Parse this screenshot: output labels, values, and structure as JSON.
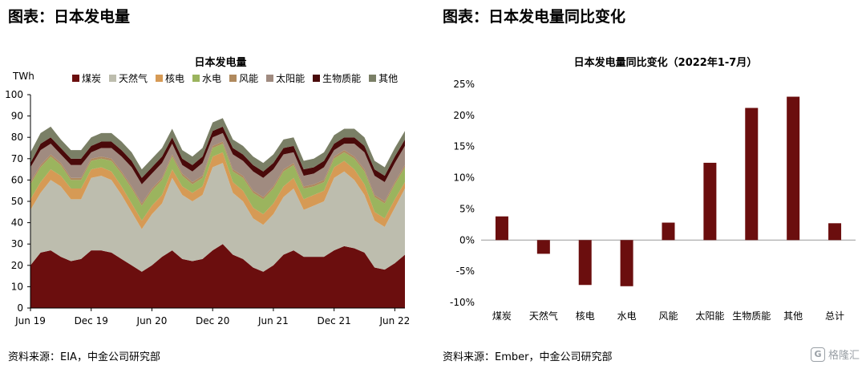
{
  "left": {
    "heading": "图表：日本发电量",
    "title": "日本发电量",
    "unit": "TWh",
    "source": "资料来源：EIA，中金公司研究部"
  },
  "right": {
    "heading": "图表：日本发电量同比变化",
    "title": "日本发电量同比变化（2022年1-7月）",
    "source": "资料来源：Ember，中金公司研究部"
  },
  "watermark": {
    "logo": "G",
    "text": "格隆汇"
  },
  "colors": {
    "coal": "#6B0E0E",
    "gas": "#BDBDAE",
    "nuclear": "#D69A55",
    "hydro": "#9BB45E",
    "wind": "#B08A5E",
    "solar": "#A08B80",
    "biomass": "#4A0A0A",
    "other": "#7A7F66",
    "bar": "#6B0E0E"
  },
  "chart_data": [
    {
      "type": "area",
      "stacked": true,
      "title": "日本发电量",
      "ylabel": "TWh",
      "ylim": [
        0,
        100
      ],
      "yticks": [
        0,
        10,
        20,
        30,
        40,
        50,
        60,
        70,
        80,
        90,
        100
      ],
      "x_tick_labels": [
        "Jun 19",
        "Dec 19",
        "Jun 20",
        "Dec 20",
        "Jun 21",
        "Dec 21",
        "Jun 22"
      ],
      "x_tick_index": [
        0,
        6,
        12,
        18,
        24,
        30,
        36
      ],
      "legend_position": "top",
      "series": [
        {
          "name": "煤炭",
          "key": "coal",
          "values": [
            20,
            26,
            27,
            24,
            22,
            23,
            27,
            27,
            26,
            23,
            20,
            17,
            20,
            24,
            27,
            23,
            22,
            23,
            27,
            30,
            25,
            23,
            19,
            17,
            20,
            25,
            27,
            24,
            24,
            24,
            27,
            29,
            28,
            26,
            19,
            18,
            21,
            25
          ]
        },
        {
          "name": "天然气",
          "key": "gas",
          "values": [
            26,
            28,
            33,
            33,
            29,
            28,
            34,
            35,
            34,
            30,
            25,
            20,
            24,
            25,
            34,
            30,
            28,
            30,
            39,
            38,
            29,
            27,
            23,
            22,
            24,
            27,
            29,
            22,
            24,
            26,
            34,
            35,
            32,
            27,
            22,
            20,
            26,
            31
          ]
        },
        {
          "name": "核电",
          "key": "nuclear",
          "values": [
            5,
            5,
            5,
            5,
            5,
            5,
            4,
            4,
            4,
            4,
            4,
            4,
            4,
            4,
            4,
            4,
            4,
            4,
            5,
            5,
            5,
            5,
            5,
            5,
            5,
            5,
            5,
            5,
            5,
            5,
            5,
            5,
            5,
            5,
            4,
            4,
            4,
            3
          ]
        },
        {
          "name": "水电",
          "key": "hydro",
          "values": [
            7,
            7,
            6,
            5,
            4,
            4,
            4,
            4,
            5,
            6,
            7,
            7,
            7,
            7,
            6,
            5,
            4,
            4,
            4,
            4,
            5,
            6,
            7,
            7,
            7,
            7,
            6,
            5,
            4,
            4,
            4,
            4,
            5,
            6,
            7,
            7,
            7,
            7
          ]
        },
        {
          "name": "风能",
          "key": "wind",
          "values": [
            1,
            1,
            1,
            1,
            1,
            1,
            1,
            1,
            1,
            1,
            1,
            1,
            1,
            1,
            1,
            1,
            1,
            1,
            1,
            1,
            1,
            1,
            1,
            1,
            1,
            1,
            1,
            1,
            1,
            1,
            1,
            1,
            1,
            1,
            1,
            1,
            1,
            1
          ]
        },
        {
          "name": "太阳能",
          "key": "solar",
          "values": [
            7,
            7,
            5,
            4,
            6,
            6,
            3,
            4,
            5,
            7,
            9,
            9,
            7,
            7,
            5,
            4,
            5,
            6,
            4,
            4,
            7,
            7,
            9,
            9,
            8,
            7,
            5,
            5,
            5,
            6,
            3,
            3,
            6,
            8,
            9,
            9,
            9,
            9
          ]
        },
        {
          "name": "生物质能",
          "key": "biomass",
          "values": [
            2,
            3,
            3,
            3,
            3,
            3,
            3,
            3,
            3,
            3,
            3,
            3,
            3,
            3,
            3,
            3,
            3,
            3,
            3,
            3,
            3,
            3,
            3,
            3,
            3,
            3,
            3,
            3,
            3,
            3,
            3,
            3,
            3,
            3,
            3,
            3,
            3,
            3
          ]
        },
        {
          "name": "其他",
          "key": "other",
          "values": [
            5,
            5,
            5,
            4,
            4,
            4,
            4,
            4,
            4,
            4,
            4,
            4,
            4,
            4,
            4,
            4,
            4,
            4,
            4,
            4,
            4,
            4,
            4,
            4,
            4,
            4,
            4,
            4,
            4,
            4,
            4,
            4,
            4,
            4,
            4,
            4,
            4,
            4
          ]
        }
      ]
    },
    {
      "type": "bar",
      "title": "日本发电量同比变化（2022年1-7月）",
      "categories": [
        "煤炭",
        "天然气",
        "核电",
        "水电",
        "风能",
        "太阳能",
        "生物质能",
        "其他",
        "总计"
      ],
      "values": [
        3.8,
        -2.2,
        -7.2,
        -7.4,
        2.8,
        12.4,
        21.2,
        23.0,
        2.7
      ],
      "ylim": [
        -10,
        25
      ],
      "yticks": [
        -10,
        -5,
        0,
        5,
        10,
        15,
        20,
        25
      ],
      "ytick_labels": [
        "-10%",
        "-5%",
        "0%",
        "5%",
        "10%",
        "15%",
        "20%",
        "25%"
      ]
    }
  ]
}
